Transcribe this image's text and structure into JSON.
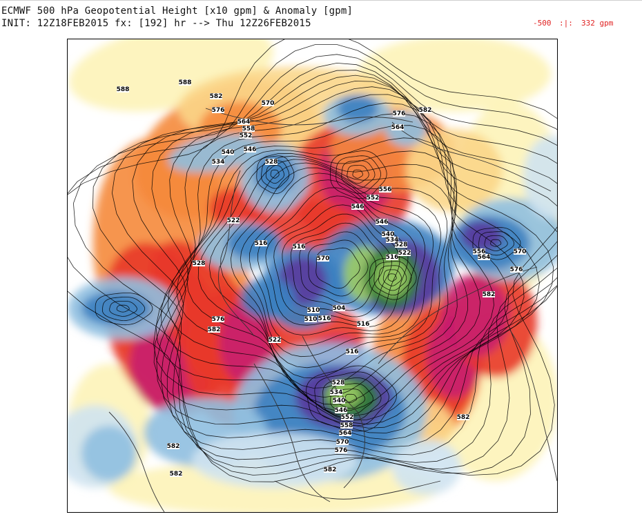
{
  "header": {
    "title": "ECMWF 500 hPa Geopotential Height [x10 gpm] & Anomaly [gpm]",
    "init_line": "INIT: 12Z18FEB2015 fx: [192] hr --> Thu 12Z26FEB2015"
  },
  "color_range": {
    "min": "-500",
    "separator": ":|:",
    "max": "332 gpm",
    "color": "#e02020"
  },
  "map": {
    "projection": "north-polar-stereographic",
    "colors": {
      "strong_positive": "#c81e6e",
      "positive": "#e8392a",
      "moderate_positive": "#f58a3c",
      "weak_positive": "#fbd68a",
      "faint_positive": "#fdf3b8",
      "faint_negative": "#cfe3f1",
      "weak_negative": "#8fbfe0",
      "negative": "#3c7fc0",
      "strong_negative": "#5a3a9c",
      "extreme_negative": "#2e7d32",
      "extreme_negative_light": "#9ccc65",
      "contour": "#000000"
    },
    "contour_labels": [
      "588",
      "588",
      "582",
      "576",
      "570",
      "564",
      "558",
      "552",
      "546",
      "540",
      "534",
      "528",
      "522",
      "516",
      "516",
      "528",
      "570",
      "576",
      "582",
      "546",
      "576",
      "582",
      "564",
      "556",
      "552",
      "546",
      "540",
      "534",
      "528",
      "522",
      "516",
      "510",
      "516",
      "504",
      "510",
      "516",
      "556",
      "564",
      "570",
      "576",
      "582",
      "582",
      "582",
      "582",
      "582",
      "576",
      "570",
      "564",
      "558",
      "552",
      "546",
      "540",
      "534",
      "528",
      "522",
      "516"
    ]
  }
}
